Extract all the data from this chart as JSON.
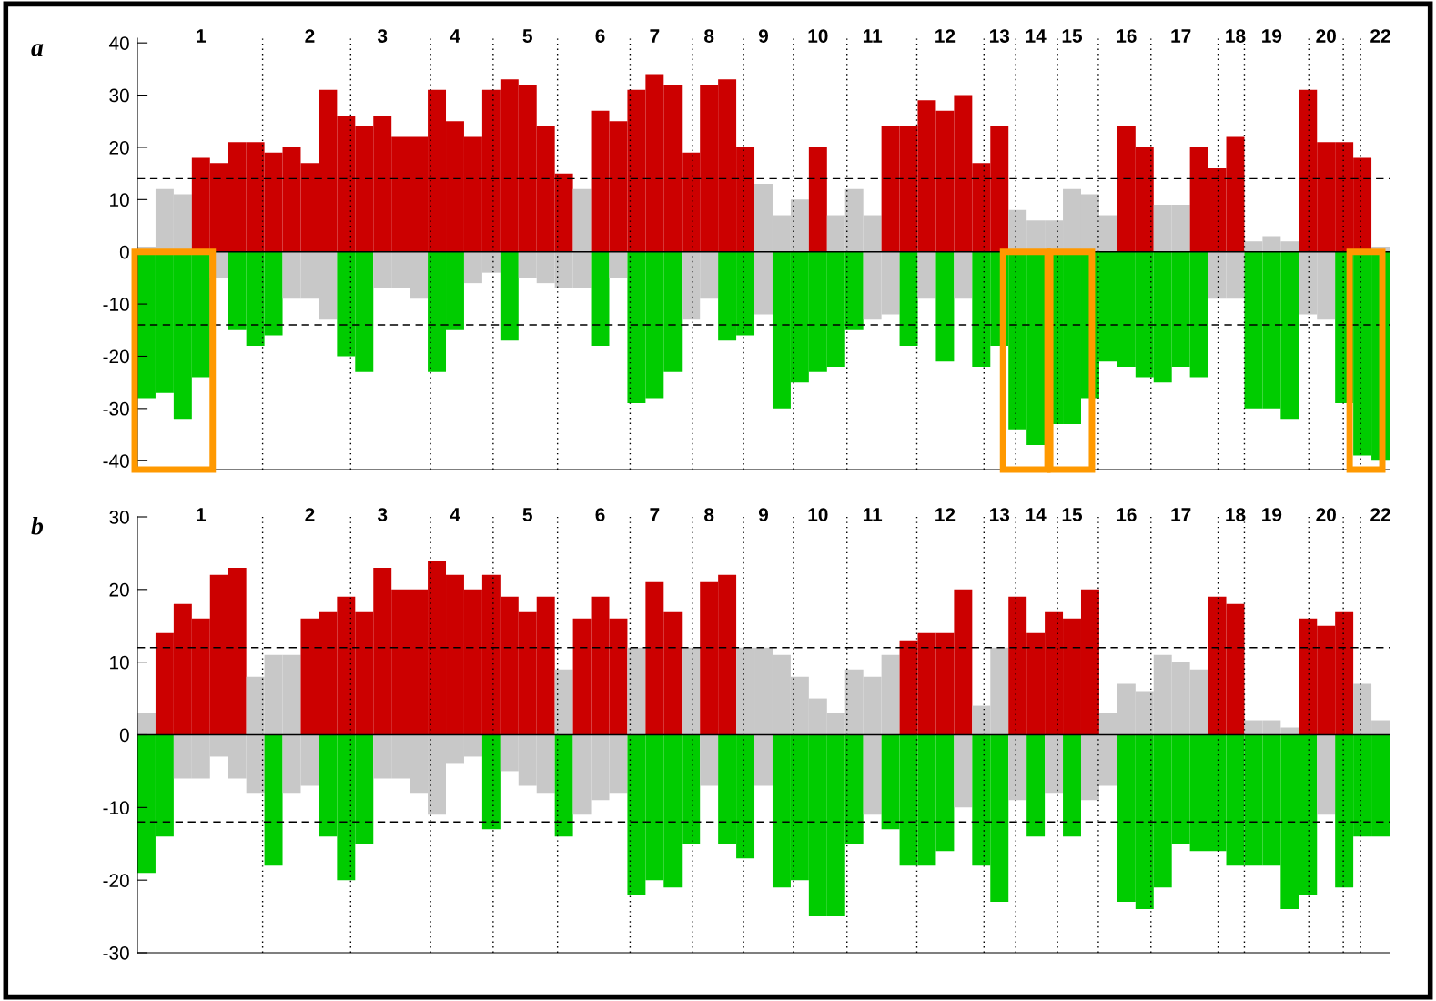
{
  "chart_data": [
    {
      "type": "bar",
      "title": "a",
      "stacked": true,
      "categories": [
        null,
        null,
        null,
        "1",
        null,
        null,
        null,
        null,
        null,
        "2",
        null,
        null,
        null,
        "3",
        null,
        null,
        null,
        "4",
        null,
        null,
        null,
        "5",
        null,
        null,
        null,
        "6",
        null,
        null,
        "7",
        null,
        null,
        "8",
        null,
        null,
        "9",
        null,
        null,
        "10",
        null,
        null,
        "11",
        null,
        null,
        null,
        "12",
        null,
        null,
        "13",
        null,
        "14",
        null,
        "15",
        null,
        null,
        "16",
        null,
        null,
        "17",
        null,
        null,
        "18",
        null,
        "19",
        null,
        null,
        "20",
        null,
        null,
        "22"
      ],
      "ylim": [
        -41.7,
        40.9
      ],
      "yticks": [
        -40,
        -30,
        -20,
        -10,
        0,
        10,
        20,
        30,
        40
      ],
      "series": [
        {
          "values": [
            1,
            12,
            11,
            18,
            17,
            21,
            21,
            19,
            20,
            17,
            31,
            26,
            24,
            26,
            22,
            22,
            31,
            25,
            22,
            31,
            33,
            32,
            24,
            15,
            12,
            27,
            25,
            31,
            34,
            32,
            19,
            32,
            33,
            20,
            13,
            7,
            10,
            20,
            7,
            12,
            7,
            24,
            24,
            29,
            27,
            30,
            17,
            24,
            8,
            6,
            6,
            12,
            11,
            7,
            24,
            20,
            9,
            9,
            20,
            16,
            22,
            2,
            3,
            2,
            31,
            21,
            21,
            18,
            1
          ],
          "colors": [
            "#c8c8c8",
            "#c8c8c8",
            "#c8c8c8",
            "#cc0000",
            "#cc0000",
            "#cc0000",
            "#cc0000",
            "#cc0000",
            "#cc0000",
            "#cc0000",
            "#cc0000",
            "#cc0000",
            "#cc0000",
            "#cc0000",
            "#cc0000",
            "#cc0000",
            "#cc0000",
            "#cc0000",
            "#cc0000",
            "#cc0000",
            "#cc0000",
            "#cc0000",
            "#cc0000",
            "#cc0000",
            "#c8c8c8",
            "#cc0000",
            "#cc0000",
            "#cc0000",
            "#cc0000",
            "#cc0000",
            "#cc0000",
            "#cc0000",
            "#cc0000",
            "#cc0000",
            "#c8c8c8",
            "#c8c8c8",
            "#c8c8c8",
            "#cc0000",
            "#c8c8c8",
            "#c8c8c8",
            "#c8c8c8",
            "#cc0000",
            "#cc0000",
            "#cc0000",
            "#cc0000",
            "#cc0000",
            "#cc0000",
            "#cc0000",
            "#c8c8c8",
            "#c8c8c8",
            "#c8c8c8",
            "#c8c8c8",
            "#c8c8c8",
            "#c8c8c8",
            "#cc0000",
            "#cc0000",
            "#c8c8c8",
            "#c8c8c8",
            "#cc0000",
            "#cc0000",
            "#cc0000",
            "#c8c8c8",
            "#c8c8c8",
            "#c8c8c8",
            "#cc0000",
            "#cc0000",
            "#cc0000",
            "#cc0000",
            "#c8c8c8"
          ]
        },
        {
          "values": [
            -28,
            -27,
            -32,
            -24,
            -5,
            -15,
            -18,
            -16,
            -9,
            -9,
            -13,
            -20,
            -23,
            -7,
            -7,
            -9,
            -23,
            -15,
            -6,
            -4,
            -17,
            -5,
            -6,
            -7,
            -7,
            -18,
            -5,
            -29,
            -28,
            -23,
            -13,
            -9,
            -17,
            -16,
            -12,
            -30,
            -25,
            -23,
            -22,
            -15,
            -13,
            -12,
            -18,
            -9,
            -21,
            -9,
            -22,
            -18,
            -34,
            -37,
            -33,
            -33,
            -28,
            -21,
            -22,
            -24,
            -25,
            -22,
            -24,
            -9,
            -9,
            -30,
            -30,
            -32,
            -12,
            -13,
            -29,
            -39,
            -40
          ],
          "colors": [
            "#00cc00",
            "#00cc00",
            "#00cc00",
            "#00cc00",
            "#c8c8c8",
            "#00cc00",
            "#00cc00",
            "#00cc00",
            "#c8c8c8",
            "#c8c8c8",
            "#c8c8c8",
            "#00cc00",
            "#00cc00",
            "#c8c8c8",
            "#c8c8c8",
            "#c8c8c8",
            "#00cc00",
            "#00cc00",
            "#c8c8c8",
            "#c8c8c8",
            "#00cc00",
            "#c8c8c8",
            "#c8c8c8",
            "#c8c8c8",
            "#c8c8c8",
            "#00cc00",
            "#c8c8c8",
            "#00cc00",
            "#00cc00",
            "#00cc00",
            "#c8c8c8",
            "#c8c8c8",
            "#00cc00",
            "#00cc00",
            "#c8c8c8",
            "#00cc00",
            "#00cc00",
            "#00cc00",
            "#00cc00",
            "#00cc00",
            "#c8c8c8",
            "#c8c8c8",
            "#00cc00",
            "#c8c8c8",
            "#00cc00",
            "#c8c8c8",
            "#00cc00",
            "#00cc00",
            "#00cc00",
            "#00cc00",
            "#00cc00",
            "#00cc00",
            "#00cc00",
            "#00cc00",
            "#00cc00",
            "#00cc00",
            "#00cc00",
            "#00cc00",
            "#00cc00",
            "#c8c8c8",
            "#c8c8c8",
            "#00cc00",
            "#00cc00",
            "#00cc00",
            "#c8c8c8",
            "#c8c8c8",
            "#00cc00",
            "#00cc00",
            "#00cc00"
          ]
        }
      ],
      "ref_lines": [
        {
          "axis": "y",
          "value": 0,
          "line_style": "solid",
          "color": "#000000"
        },
        {
          "axis": "y",
          "value": 14,
          "line_style": "dashed",
          "color": "#000000"
        },
        {
          "axis": "y",
          "value": -14,
          "line_style": "dashed",
          "color": "#000000"
        }
      ]
    },
    {
      "type": "bar",
      "title": "b",
      "stacked": true,
      "categories": [
        null,
        null,
        null,
        "1",
        null,
        null,
        null,
        null,
        null,
        "2",
        null,
        null,
        null,
        "3",
        null,
        null,
        null,
        "4",
        null,
        null,
        null,
        "5",
        null,
        null,
        null,
        "6",
        null,
        null,
        "7",
        null,
        null,
        "8",
        null,
        null,
        "9",
        null,
        null,
        "10",
        null,
        null,
        "11",
        null,
        null,
        null,
        "12",
        null,
        null,
        "13",
        null,
        "14",
        null,
        "15",
        null,
        null,
        "16",
        null,
        null,
        "17",
        null,
        null,
        "18",
        null,
        "19",
        null,
        null,
        "20",
        null,
        null,
        "22"
      ],
      "ylim": [
        -30,
        30
      ],
      "yticks": [
        -30,
        -20,
        -10,
        0,
        10,
        20,
        30
      ],
      "series": [
        {
          "values": [
            3,
            14,
            18,
            16,
            22,
            23,
            8,
            11,
            11,
            16,
            17,
            19,
            17,
            23,
            20,
            20,
            24,
            22,
            20,
            22,
            19,
            17,
            19,
            9,
            16,
            19,
            16,
            12,
            21,
            17,
            12,
            21,
            22,
            12,
            12,
            11,
            8,
            5,
            3,
            9,
            8,
            11,
            13,
            14,
            14,
            20,
            4,
            12,
            19,
            14,
            17,
            16,
            20,
            3,
            7,
            6,
            11,
            10,
            9,
            19,
            18,
            2,
            2,
            1,
            16,
            15,
            17,
            7,
            2
          ],
          "colors": [
            "#c8c8c8",
            "#cc0000",
            "#cc0000",
            "#cc0000",
            "#cc0000",
            "#cc0000",
            "#c8c8c8",
            "#c8c8c8",
            "#c8c8c8",
            "#cc0000",
            "#cc0000",
            "#cc0000",
            "#cc0000",
            "#cc0000",
            "#cc0000",
            "#cc0000",
            "#cc0000",
            "#cc0000",
            "#cc0000",
            "#cc0000",
            "#cc0000",
            "#cc0000",
            "#cc0000",
            "#c8c8c8",
            "#cc0000",
            "#cc0000",
            "#cc0000",
            "#c8c8c8",
            "#cc0000",
            "#cc0000",
            "#c8c8c8",
            "#cc0000",
            "#cc0000",
            "#c8c8c8",
            "#c8c8c8",
            "#c8c8c8",
            "#c8c8c8",
            "#c8c8c8",
            "#c8c8c8",
            "#c8c8c8",
            "#c8c8c8",
            "#c8c8c8",
            "#cc0000",
            "#cc0000",
            "#cc0000",
            "#cc0000",
            "#c8c8c8",
            "#c8c8c8",
            "#cc0000",
            "#cc0000",
            "#cc0000",
            "#cc0000",
            "#cc0000",
            "#c8c8c8",
            "#c8c8c8",
            "#c8c8c8",
            "#c8c8c8",
            "#c8c8c8",
            "#c8c8c8",
            "#cc0000",
            "#cc0000",
            "#c8c8c8",
            "#c8c8c8",
            "#c8c8c8",
            "#cc0000",
            "#cc0000",
            "#cc0000",
            "#c8c8c8",
            "#c8c8c8"
          ]
        },
        {
          "values": [
            -19,
            -14,
            -6,
            -6,
            -3,
            -6,
            -8,
            -18,
            -8,
            -7,
            -14,
            -20,
            -15,
            -6,
            -6,
            -8,
            -11,
            -4,
            -3,
            -13,
            -5,
            -7,
            -8,
            -14,
            -11,
            -9,
            -8,
            -22,
            -20,
            -21,
            -15,
            -7,
            -15,
            -17,
            -7,
            -21,
            -20,
            -25,
            -25,
            -15,
            -11,
            -13,
            -18,
            -18,
            -16,
            -10,
            -18,
            -23,
            -9,
            -14,
            -8,
            -14,
            -9,
            -7,
            -23,
            -24,
            -21,
            -15,
            -16,
            -16,
            -18,
            -18,
            -18,
            -24,
            -22,
            -11,
            -21,
            -14,
            -14
          ],
          "colors": [
            "#00cc00",
            "#00cc00",
            "#c8c8c8",
            "#c8c8c8",
            "#c8c8c8",
            "#c8c8c8",
            "#c8c8c8",
            "#00cc00",
            "#c8c8c8",
            "#c8c8c8",
            "#00cc00",
            "#00cc00",
            "#00cc00",
            "#c8c8c8",
            "#c8c8c8",
            "#c8c8c8",
            "#c8c8c8",
            "#c8c8c8",
            "#c8c8c8",
            "#00cc00",
            "#c8c8c8",
            "#c8c8c8",
            "#c8c8c8",
            "#00cc00",
            "#c8c8c8",
            "#c8c8c8",
            "#c8c8c8",
            "#00cc00",
            "#00cc00",
            "#00cc00",
            "#00cc00",
            "#c8c8c8",
            "#00cc00",
            "#00cc00",
            "#c8c8c8",
            "#00cc00",
            "#00cc00",
            "#00cc00",
            "#00cc00",
            "#00cc00",
            "#c8c8c8",
            "#00cc00",
            "#00cc00",
            "#00cc00",
            "#00cc00",
            "#c8c8c8",
            "#00cc00",
            "#00cc00",
            "#c8c8c8",
            "#00cc00",
            "#c8c8c8",
            "#00cc00",
            "#c8c8c8",
            "#c8c8c8",
            "#00cc00",
            "#00cc00",
            "#00cc00",
            "#00cc00",
            "#00cc00",
            "#00cc00",
            "#00cc00",
            "#00cc00",
            "#00cc00",
            "#00cc00",
            "#00cc00",
            "#c8c8c8",
            "#00cc00",
            "#00cc00",
            "#00cc00"
          ]
        }
      ],
      "ref_lines": [
        {
          "axis": "y",
          "value": 0,
          "line_style": "solid",
          "color": "#000000"
        },
        {
          "axis": "y",
          "value": 12,
          "line_style": "dashed",
          "color": "#000000"
        },
        {
          "axis": "y",
          "value": -12,
          "line_style": "dashed",
          "color": "#000000"
        }
      ]
    }
  ]
}
